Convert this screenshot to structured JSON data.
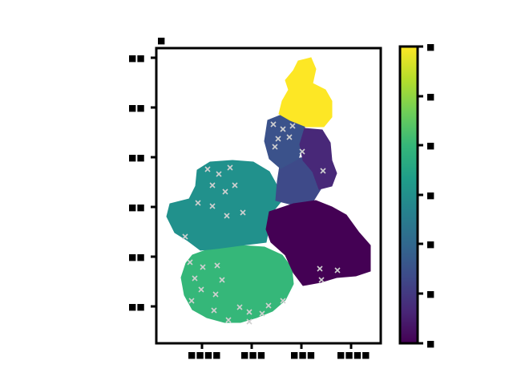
{
  "figure": {
    "title": "",
    "xlabel": "",
    "ylabel": ""
  },
  "map": {
    "background": "#ffffff",
    "outline_color": "#000000",
    "marker_color": "#d0d0d0",
    "marker_symbol": "x",
    "zones": [
      {
        "id": "north-top",
        "color": "#fde725"
      },
      {
        "id": "north-center",
        "color": "#3b528b"
      },
      {
        "id": "east-upper",
        "color": "#482878"
      },
      {
        "id": "center",
        "color": "#3e4a89"
      },
      {
        "id": "west",
        "color": "#21918c"
      },
      {
        "id": "east-lower",
        "color": "#440154"
      },
      {
        "id": "south",
        "color": "#35b779"
      }
    ],
    "x_ticks": [
      "■■■■",
      "■■■",
      "■■■",
      "■■■■"
    ],
    "y_ticks": [
      "■■",
      "■■",
      "■■",
      "■■",
      "■■",
      "■■"
    ],
    "top_left_label": "■"
  },
  "colorbar": {
    "colormap": "viridis",
    "stops": [
      "#440154",
      "#482878",
      "#3e4a89",
      "#31688e",
      "#26828e",
      "#1f9e89",
      "#35b779",
      "#6ece58",
      "#b5de2b",
      "#fde725"
    ],
    "tick_labels": [
      "■",
      "■",
      "■",
      "■",
      "■",
      "■",
      "■"
    ]
  }
}
